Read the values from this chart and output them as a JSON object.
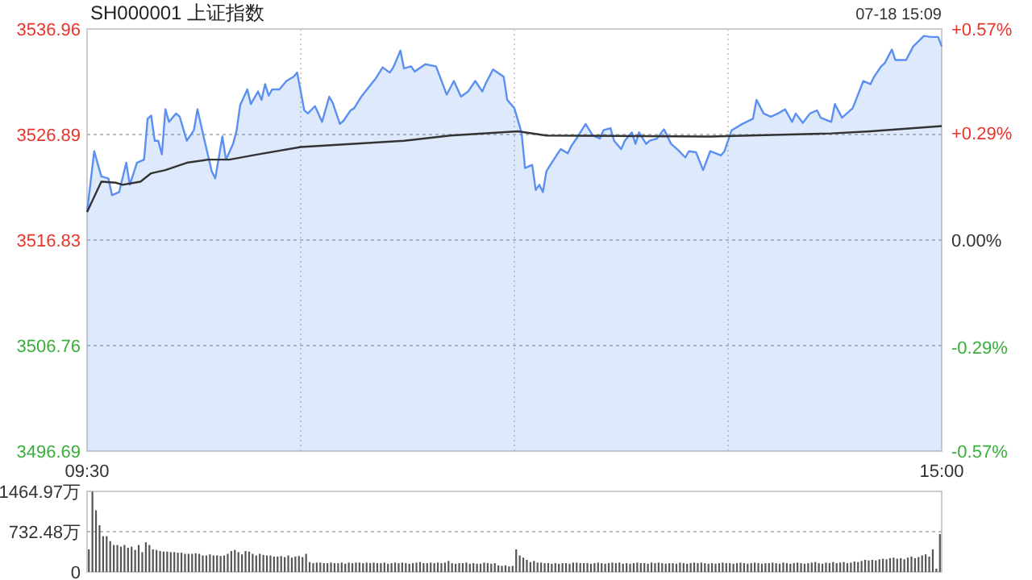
{
  "chart_data": [
    {
      "type": "line",
      "title": "SH000001 上证指数",
      "annotations": [
        "07-18 15:09"
      ],
      "ylim": [
        3496.69,
        3536.96
      ],
      "yticks": [
        3496.69,
        3506.76,
        3516.83,
        3526.89,
        3536.96
      ],
      "y2lim": [
        -0.57,
        0.57
      ],
      "y2ticks": [
        {
          "value": -0.57,
          "label": "-0.57%"
        },
        {
          "value": -0.29,
          "label": "-0.29%"
        },
        {
          "value": 0,
          "label": "0.00%"
        },
        {
          "value": 0.29,
          "label": "+0.29%"
        },
        {
          "value": 0.57,
          "label": "+0.57%"
        }
      ],
      "grid": true,
      "categories": [
        "09:30",
        null,
        null,
        null,
        null,
        null,
        null,
        null,
        null,
        null,
        null,
        null,
        null,
        null,
        null,
        null,
        null,
        null,
        null,
        null,
        null,
        null,
        null,
        null,
        null,
        null,
        null,
        null,
        null,
        null,
        null,
        null,
        null,
        null,
        null,
        null,
        null,
        null,
        null,
        null,
        null,
        null,
        null,
        null,
        null,
        null,
        null,
        null,
        null,
        null,
        null,
        null,
        null,
        null,
        null,
        null,
        null,
        null,
        null,
        null,
        null,
        null,
        null,
        null,
        null,
        null,
        null,
        null,
        null,
        null,
        null,
        null,
        null,
        null,
        null,
        null,
        null,
        null,
        null,
        null,
        null,
        null,
        null,
        null,
        null,
        null,
        null,
        null,
        null,
        null,
        null,
        null,
        null,
        null,
        null,
        null,
        null,
        null,
        null,
        null,
        null,
        null,
        null,
        null,
        null,
        null,
        null,
        null,
        null,
        null,
        null,
        null,
        null,
        null,
        null,
        null,
        null,
        null,
        null,
        null,
        null,
        null,
        null,
        null,
        null,
        null,
        null,
        null,
        null,
        null,
        null,
        null,
        null,
        null,
        null,
        null,
        null,
        null,
        null,
        null,
        null,
        null,
        null,
        null,
        null,
        null,
        null,
        null,
        null,
        null,
        null,
        null,
        null,
        null,
        null,
        null,
        null,
        null,
        null,
        null,
        null,
        null,
        null,
        null,
        null,
        null,
        null,
        null,
        null,
        null,
        null,
        null,
        null,
        null,
        null,
        null,
        null,
        null,
        null,
        null,
        null,
        null,
        null,
        null,
        null,
        null,
        null,
        null,
        null,
        null,
        null,
        null,
        null,
        null,
        null,
        null,
        null,
        null,
        null,
        null,
        null,
        null,
        null,
        null,
        null,
        null,
        null,
        null,
        null,
        null,
        null,
        null,
        null,
        null,
        null,
        null,
        null,
        null,
        null,
        null,
        null,
        null,
        null,
        null,
        null,
        null,
        null,
        null,
        null,
        null,
        null,
        null,
        null,
        null,
        null,
        null,
        null,
        null,
        null,
        null,
        "15:00"
      ],
      "series": [
        {
          "type": "area",
          "color": "#5b8ff0",
          "values": [
            3519.5,
            null,
            3525.3,
            null,
            3522.9,
            null,
            3522.7,
            3521.1,
            null,
            3521.4,
            null,
            3524.2,
            3522.1,
            null,
            3524.2,
            null,
            3524.5,
            3528.4,
            3528.7,
            3526.3,
            3526.3,
            3525.0,
            3529.3,
            3528.1,
            null,
            3528.9,
            3528.6,
            null,
            3526.3,
            null,
            3527.3,
            3529.3,
            null,
            3526.3,
            null,
            3523.4,
            3522.7,
            null,
            3526.7,
            3524.5,
            null,
            3526.0,
            3527.3,
            3529.7,
            null,
            3531.2,
            3529.8,
            null,
            3531.0,
            3530.2,
            3531.7,
            3530.6,
            3531.2,
            null,
            3531.2,
            null,
            3532.0,
            null,
            3532.4,
            3532.8,
            null,
            3529.2,
            3528.9,
            null,
            3529.6,
            null,
            3528.1,
            null,
            3530.5,
            3529.9,
            null,
            3527.9,
            3528.2,
            null,
            3529.2,
            3529.4,
            null,
            3530.5,
            null,
            null,
            3531.8,
            3532.2,
            null,
            3533.3,
            null,
            3532.8,
            3533.3,
            null,
            3534.9,
            3533.2,
            null,
            3533.4,
            3532.9,
            null,
            null,
            3533.6,
            null,
            null,
            3533.4,
            null,
            null,
            3530.7,
            null,
            3532.0,
            null,
            3530.5,
            null,
            3531.0,
            null,
            3532.0,
            null,
            3531.0,
            3531.8,
            null,
            3533.1,
            null,
            null,
            3532.4,
            3530.2,
            null,
            3529.4,
            null,
            3527.1,
            3523.7,
            null,
            3524.0,
            3521.6,
            3522.1,
            3521.4,
            3523.4,
            null,
            null,
            3525.0,
            3525.5,
            null,
            3525.1,
            3525.8,
            null,
            3526.8,
            null,
            3527.9,
            null,
            3526.8,
            null,
            3526.5,
            3527.3,
            null,
            3527.5,
            3526.3,
            null,
            3525.5,
            3526.3,
            null,
            3527.1,
            3526.0,
            3527.1,
            null,
            3526.0,
            3526.3,
            null,
            3526.5,
            null,
            3527.4,
            null,
            3526.0,
            null,
            3525.4,
            null,
            3524.7,
            3525.3,
            null,
            3525.2,
            null,
            3523.5,
            null,
            3525.3,
            null,
            null,
            3524.9,
            3525.3,
            null,
            3527.3,
            null,
            null,
            3527.9,
            null,
            null,
            3528.4,
            3530.2,
            null,
            3528.9,
            null,
            3528.6,
            null,
            3528.9,
            null,
            3529.3,
            null,
            3528.1,
            3528.9,
            null,
            3528.0,
            null,
            3528.9,
            null,
            3529.2,
            3528.5,
            null,
            null,
            3528.1,
            3529.8,
            null,
            3528.5,
            null,
            null,
            3529.4,
            null,
            null,
            3532.0,
            null,
            3531.7,
            3532.4,
            null,
            3533.4,
            3533.7,
            null,
            3535.0,
            3534.0,
            null,
            null,
            3534.0,
            null,
            3535.3,
            null,
            null,
            3536.3,
            null,
            3536.2,
            null,
            3536.2,
            3535.3
          ]
        },
        {
          "type": "line",
          "color": "#333333",
          "values": [
            3519.5,
            null,
            null,
            null,
            3522.4,
            null,
            null,
            null,
            3522.3,
            null,
            3522.1,
            null,
            null,
            null,
            null,
            3522.4,
            null,
            null,
            3523.2,
            null,
            null,
            null,
            3523.5,
            null,
            null,
            null,
            null,
            null,
            3524.2,
            null,
            null,
            null,
            null,
            null,
            3524.5,
            null,
            null,
            null,
            null,
            null,
            3524.5,
            null,
            null,
            null,
            null,
            null,
            null,
            null,
            3525.0,
            null,
            null,
            null,
            null,
            null,
            null,
            null,
            null,
            null,
            null,
            null,
            3525.7,
            null,
            null,
            null,
            null,
            null,
            null,
            null,
            null,
            null,
            null,
            null,
            null,
            null,
            null,
            null,
            null,
            null,
            null,
            null,
            null,
            null,
            null,
            null,
            null,
            null,
            null,
            null,
            null,
            3526.3,
            null,
            null,
            null,
            null,
            null,
            null,
            null,
            null,
            null,
            null,
            null,
            null,
            3526.8,
            null,
            null,
            null,
            null,
            null,
            null,
            null,
            null,
            null,
            null,
            null,
            null,
            null,
            null,
            null,
            null,
            null,
            null,
            3527.2,
            null,
            null,
            null,
            null,
            null,
            null,
            null,
            3526.8,
            null,
            null,
            null,
            null,
            null,
            null,
            null,
            null,
            null,
            null,
            null,
            null,
            null,
            null,
            null,
            null,
            null,
            null,
            null,
            null,
            null,
            null,
            null,
            null,
            null,
            null,
            null,
            null,
            null,
            null,
            null,
            null,
            null,
            null,
            null,
            null,
            null,
            null,
            null,
            null,
            null,
            null,
            null,
            null,
            null,
            3526.7,
            null,
            null,
            null,
            null,
            null,
            null,
            null,
            null,
            null,
            null,
            null,
            null,
            null,
            null,
            null,
            null,
            null,
            null,
            null,
            null,
            null,
            null,
            null,
            null,
            null,
            null,
            null,
            null,
            null,
            null,
            null,
            null,
            null,
            3527.0,
            null,
            null,
            null,
            null,
            null,
            null,
            null,
            null,
            null,
            null,
            3527.2,
            null,
            null,
            null,
            null,
            null,
            null,
            null,
            null,
            null,
            null,
            null,
            null,
            null,
            null,
            null,
            null,
            null,
            null,
            null,
            3527.7
          ]
        }
      ]
    },
    {
      "type": "bar",
      "color": "#555555",
      "tick_labels": "y",
      "grid": "y",
      "ylim": [
        0,
        1464.97
      ],
      "yticks": [
        0,
        {
          "value": 732.48,
          "label": "732.48万"
        },
        {
          "value": 1464.97,
          "label": "1464.97万"
        }
      ],
      "categories": [
        null,
        null,
        null,
        null,
        null,
        null,
        null,
        null,
        null,
        null,
        null,
        null,
        null,
        null,
        null,
        null,
        null,
        null,
        null,
        null,
        null,
        null,
        null,
        null,
        null,
        null,
        null,
        null,
        null,
        null,
        null,
        null,
        null,
        null,
        null,
        null,
        null,
        null,
        null,
        null,
        null,
        null,
        null,
        null,
        null,
        null,
        null,
        null,
        null,
        null,
        null,
        null,
        null,
        null,
        null,
        null,
        null,
        null,
        null,
        null,
        null,
        null,
        null,
        null,
        null,
        null,
        null,
        null,
        null,
        null,
        null,
        null,
        null,
        null,
        null,
        null,
        null,
        null,
        null,
        null,
        null,
        null,
        null,
        null,
        null,
        null,
        null,
        null,
        null,
        null,
        null,
        null,
        null,
        null,
        null,
        null,
        null,
        null,
        null,
        null,
        null,
        null,
        null,
        null,
        null,
        null,
        null,
        null,
        null,
        null,
        null,
        null,
        null,
        null,
        null,
        null,
        null,
        null,
        null,
        null,
        null,
        null,
        null,
        null,
        null,
        null,
        null,
        null,
        null,
        null,
        null,
        null,
        null,
        null,
        null,
        null,
        null,
        null,
        null,
        null,
        null,
        null,
        null,
        null,
        null,
        null,
        null,
        null,
        null,
        null,
        null,
        null,
        null,
        null,
        null,
        null,
        null,
        null,
        null,
        null,
        null,
        null,
        null,
        null,
        null,
        null,
        null,
        null,
        null,
        null,
        null,
        null,
        null,
        null,
        null,
        null,
        null,
        null,
        null,
        null,
        null,
        null,
        null,
        null,
        null,
        null,
        null,
        null,
        null,
        null,
        null,
        null,
        null,
        null,
        null,
        null,
        null,
        null,
        null,
        null,
        null,
        null,
        null,
        null,
        null,
        null,
        null,
        null,
        null,
        null,
        null,
        null,
        null,
        null,
        null,
        null,
        null,
        null,
        null,
        null,
        null,
        null,
        null,
        null,
        null,
        null,
        null,
        null,
        null,
        null,
        null,
        null,
        null,
        null,
        null,
        null,
        null,
        null,
        null,
        null
      ],
      "values": [
        410,
        1460,
        1120,
        850,
        650,
        650,
        560,
        490,
        490,
        460,
        490,
        440,
        460,
        400,
        490,
        360,
        540,
        490,
        410,
        400,
        380,
        370,
        370,
        360,
        360,
        350,
        350,
        330,
        330,
        330,
        340,
        330,
        300,
        300,
        320,
        300,
        300,
        290,
        300,
        330,
        380,
        400,
        360,
        320,
        380,
        370,
        330,
        300,
        330,
        310,
        300,
        300,
        280,
        280,
        290,
        270,
        300,
        260,
        280,
        290,
        270,
        330,
        180,
        160,
        170,
        170,
        160,
        160,
        170,
        160,
        160,
        170,
        150,
        170,
        160,
        170,
        170,
        160,
        170,
        160,
        170,
        160,
        160,
        170,
        150,
        160,
        170,
        160,
        170,
        160,
        150,
        160,
        170,
        180,
        160,
        160,
        170,
        160,
        170,
        160,
        170,
        200,
        160,
        150,
        160,
        160,
        170,
        150,
        160,
        150,
        150,
        170,
        160,
        150,
        160,
        120,
        110,
        120,
        100,
        110,
        410,
        300,
        260,
        220,
        180,
        200,
        170,
        170,
        160,
        160,
        150,
        160,
        150,
        160,
        160,
        150,
        170,
        170,
        160,
        160,
        160,
        150,
        160,
        170,
        160,
        150,
        160,
        170,
        160,
        170,
        150,
        160,
        150,
        160,
        170,
        160,
        160,
        150,
        170,
        160,
        170,
        160,
        150,
        160,
        160,
        150,
        170,
        160,
        150,
        160,
        170,
        160,
        170,
        160,
        150,
        160,
        150,
        160,
        170,
        160,
        160,
        150,
        160,
        170,
        160,
        150,
        160,
        170,
        160,
        150,
        160,
        160,
        170,
        160,
        150,
        170,
        160,
        150,
        160,
        170,
        160,
        150,
        160,
        170,
        180,
        160,
        150,
        170,
        160,
        180,
        160,
        170,
        180,
        160,
        170,
        190,
        180,
        200,
        220,
        210,
        220,
        210,
        230,
        240,
        230,
        250,
        260,
        240,
        250,
        230,
        260,
        280,
        250,
        270,
        300,
        320,
        280,
        410,
        60,
        690
      ]
    }
  ]
}
